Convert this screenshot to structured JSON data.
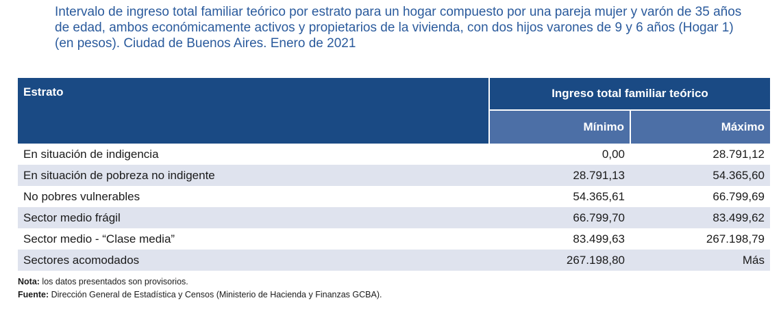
{
  "title": "Intervalo de ingreso total familiar teórico por estrato para un hogar compuesto por una pareja mujer y varón de 35 años de edad, ambos económicamente activos y propietarios de la vivienda, con dos hijos varones de 9 y 6 años (Hogar 1) (en pesos). Ciudad de Buenos Aires. Enero de 2021",
  "table": {
    "col_estrato": "Estrato",
    "col_group": "Ingreso total familiar teórico",
    "col_min": "Mínimo",
    "col_max": "Máximo",
    "rows": [
      {
        "estrato": "En situación de indigencia",
        "min": "0,00",
        "max": "28.791,12"
      },
      {
        "estrato": "En situación de pobreza no indigente",
        "min": "28.791,13",
        "max": "54.365,60"
      },
      {
        "estrato": "No pobres vulnerables",
        "min": "54.365,61",
        "max": "66.799,69"
      },
      {
        "estrato": "Sector medio frágil",
        "min": "66.799,70",
        "max": "83.499,62"
      },
      {
        "estrato": "Sector medio - “Clase media”",
        "min": "83.499,63",
        "max": "267.198,79"
      },
      {
        "estrato": "Sectores acomodados",
        "min": "267.198,80",
        "max": "Más"
      }
    ]
  },
  "notes": {
    "nota_label": "Nota:",
    "nota_text": " los datos presentados son provisorios.",
    "fuente_label": "Fuente:",
    "fuente_text": " Dirección General de Estadística y Censos (Ministerio de Hacienda y Finanzas GCBA)."
  }
}
